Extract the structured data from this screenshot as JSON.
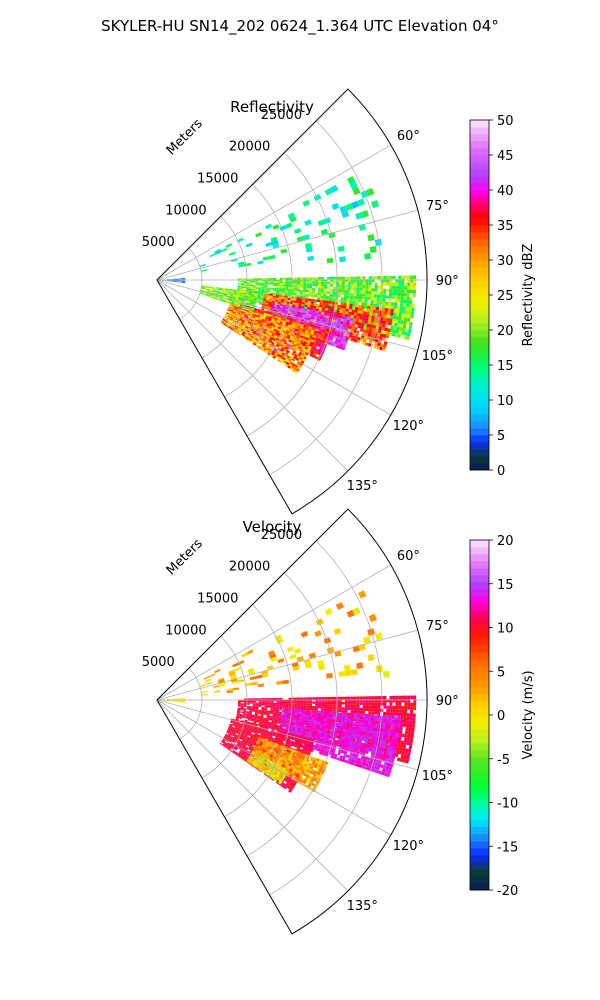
{
  "title": "SKYLER-HU  SN14_202  0624_1.364 UTC Elevation 04°",
  "chart_data": [
    {
      "type": "heatmap",
      "projection": "polar-sector",
      "title": "Reflectivity",
      "range_label": "Meters",
      "range_ticks": [
        5000,
        10000,
        15000,
        20000,
        25000
      ],
      "range_max": 30000,
      "azimuth_range_deg": [
        45,
        150
      ],
      "azimuth_ticks_deg": [
        60,
        75,
        90,
        105,
        120,
        135
      ],
      "azimuth_tick_labels": [
        "60°",
        "75°",
        "90°",
        "105°",
        "120°",
        "135°"
      ],
      "grid": true,
      "colorbar": {
        "label": "Reflectivity dBZ",
        "min": 0,
        "max": 50,
        "ticks": [
          0,
          5,
          10,
          15,
          20,
          25,
          30,
          35,
          40,
          45,
          50
        ],
        "stops": [
          {
            "v": 0,
            "c": "#0b1a5a"
          },
          {
            "v": 2,
            "c": "#0b3d38"
          },
          {
            "v": 4,
            "c": "#0a2cff"
          },
          {
            "v": 6,
            "c": "#1a8cff"
          },
          {
            "v": 9,
            "c": "#00d7ff"
          },
          {
            "v": 12,
            "c": "#00f0d2"
          },
          {
            "v": 15,
            "c": "#00ff6a"
          },
          {
            "v": 18,
            "c": "#3ce21c"
          },
          {
            "v": 21,
            "c": "#a8f020"
          },
          {
            "v": 24,
            "c": "#f2f000"
          },
          {
            "v": 27,
            "c": "#ffd000"
          },
          {
            "v": 30,
            "c": "#ffa000"
          },
          {
            "v": 33,
            "c": "#ff5a00"
          },
          {
            "v": 36,
            "c": "#ff0000"
          },
          {
            "v": 38,
            "c": "#ff0070"
          },
          {
            "v": 40,
            "c": "#ff00ff"
          },
          {
            "v": 42,
            "c": "#b040ff"
          },
          {
            "v": 46,
            "c": "#e070ff"
          },
          {
            "v": 50,
            "c": "#ffe6ff"
          }
        ]
      },
      "echo_regions": [
        {
          "az": [
            89,
            103
          ],
          "r": [
            9000,
            28500
          ],
          "v": [
            14,
            24
          ]
        },
        {
          "az": [
            97,
            107
          ],
          "r": [
            12000,
            26500
          ],
          "v": [
            27,
            38
          ]
        },
        {
          "az": [
            101,
            110
          ],
          "r": [
            13000,
            22000
          ],
          "v": [
            38,
            46
          ]
        },
        {
          "az": [
            106,
            116
          ],
          "r": [
            9000,
            20000
          ],
          "v": [
            32,
            40
          ]
        },
        {
          "az": [
            113,
            121
          ],
          "r": [
            10000,
            16500
          ],
          "v": [
            38,
            48
          ]
        },
        {
          "az": [
            107,
            123
          ],
          "r": [
            8500,
            18500
          ],
          "v": [
            24,
            36
          ]
        },
        {
          "az": [
            97,
            108
          ],
          "r": [
            5000,
            11000
          ],
          "v": [
            16,
            24
          ]
        },
        {
          "az": [
            86,
            96
          ],
          "r": [
            500,
            3000
          ],
          "v": [
            2,
            10
          ]
        },
        {
          "az": [
            62,
            84
          ],
          "r": [
            5000,
            26000
          ],
          "v": [
            8,
            18
          ],
          "sparse": true
        }
      ]
    },
    {
      "type": "heatmap",
      "projection": "polar-sector",
      "title": "Velocity",
      "range_label": "Meters",
      "range_ticks": [
        5000,
        10000,
        15000,
        20000,
        25000
      ],
      "range_max": 30000,
      "azimuth_range_deg": [
        45,
        150
      ],
      "azimuth_ticks_deg": [
        60,
        75,
        90,
        105,
        120,
        135
      ],
      "azimuth_tick_labels": [
        "60°",
        "75°",
        "90°",
        "105°",
        "120°",
        "135°"
      ],
      "grid": true,
      "colorbar": {
        "label": "Velocity (m/s)",
        "min": -20,
        "max": 20,
        "ticks": [
          -20,
          -15,
          -10,
          -5,
          0,
          5,
          10,
          15,
          20
        ],
        "stops": [
          {
            "v": -20,
            "c": "#0b1a5a"
          },
          {
            "v": -18,
            "c": "#0b3d38"
          },
          {
            "v": -16,
            "c": "#0a2cff"
          },
          {
            "v": -14,
            "c": "#1a8cff"
          },
          {
            "v": -12,
            "c": "#00e8ff"
          },
          {
            "v": -10,
            "c": "#00ff9a"
          },
          {
            "v": -8,
            "c": "#00ff30"
          },
          {
            "v": -5,
            "c": "#5ce61e"
          },
          {
            "v": -3,
            "c": "#b8f020"
          },
          {
            "v": -1,
            "c": "#f2f000"
          },
          {
            "v": 1,
            "c": "#ffd400"
          },
          {
            "v": 3,
            "c": "#ffa000"
          },
          {
            "v": 6,
            "c": "#ff6a00"
          },
          {
            "v": 9,
            "c": "#ff1a00"
          },
          {
            "v": 11,
            "c": "#ff0050"
          },
          {
            "v": 13,
            "c": "#ff00e0"
          },
          {
            "v": 15,
            "c": "#b040ff"
          },
          {
            "v": 17,
            "c": "#e070ff"
          },
          {
            "v": 20,
            "c": "#ffe6ff"
          }
        ]
      },
      "echo_regions": [
        {
          "az": [
            89,
            104
          ],
          "r": [
            9000,
            28500
          ],
          "v": [
            9,
            12
          ]
        },
        {
          "az": [
            94,
            108
          ],
          "r": [
            14000,
            27000
          ],
          "v": [
            12,
            15
          ]
        },
        {
          "az": [
            104,
            124
          ],
          "r": [
            8500,
            18000
          ],
          "v": [
            9,
            12
          ]
        },
        {
          "az": [
            110,
            120
          ],
          "r": [
            12000,
            20000
          ],
          "v": [
            0,
            6
          ]
        },
        {
          "az": [
            118,
            124
          ],
          "r": [
            12000,
            16500
          ],
          "v": [
            -4,
            3
          ]
        },
        {
          "az": [
            86,
            96
          ],
          "r": [
            500,
            3000
          ],
          "v": [
            -2,
            2
          ]
        },
        {
          "az": [
            62,
            84
          ],
          "r": [
            5000,
            26000
          ],
          "v": [
            -2,
            6
          ],
          "sparse": true
        }
      ]
    }
  ]
}
